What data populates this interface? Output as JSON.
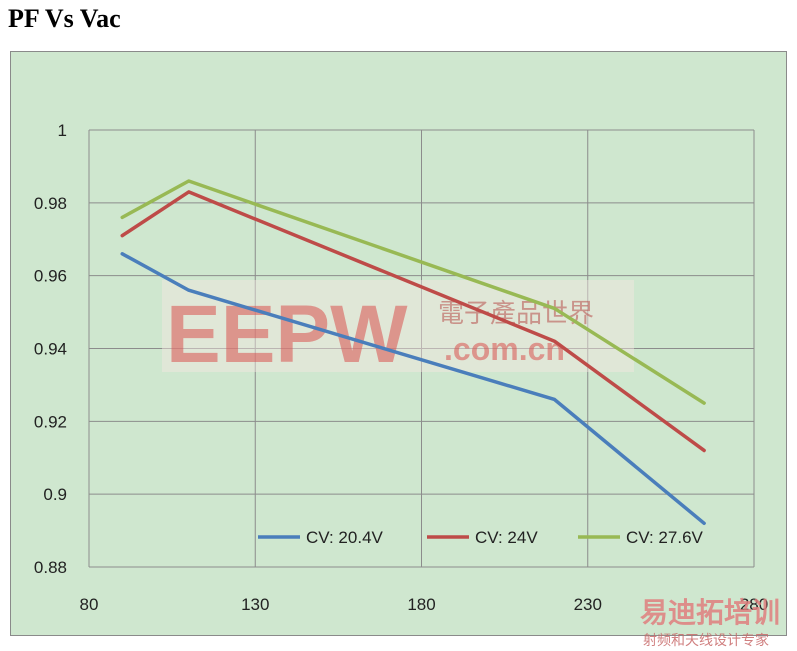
{
  "title": "PF Vs Vac",
  "chart_data": {
    "type": "line",
    "title": "PF Vs Vac",
    "xlabel": "",
    "ylabel": "",
    "xlim": [
      80,
      280
    ],
    "ylim": [
      0.88,
      1.0
    ],
    "x_ticks": [
      80,
      130,
      180,
      230,
      280
    ],
    "y_ticks": [
      0.88,
      0.9,
      0.92,
      0.94,
      0.96,
      0.98,
      1
    ],
    "x_tick_labels": [
      "80",
      "130",
      "180",
      "230",
      "280"
    ],
    "y_tick_labels": [
      "0.88",
      "0.9",
      "0.92",
      "0.94",
      "0.96",
      "0.98",
      "1"
    ],
    "grid": {
      "horizontal": true,
      "vertical": true
    },
    "legend_position": "bottom-right",
    "series": [
      {
        "name": "CV: 20.4V",
        "color": "#4a7ebb",
        "x": [
          90,
          110,
          220,
          265
        ],
        "y": [
          0.966,
          0.956,
          0.926,
          0.892
        ]
      },
      {
        "name": "CV: 24V",
        "color": "#be4b48",
        "x": [
          90,
          110,
          220,
          265
        ],
        "y": [
          0.971,
          0.983,
          0.942,
          0.912
        ]
      },
      {
        "name": "CV: 27.6V",
        "color": "#98b954",
        "x": [
          90,
          110,
          220,
          265
        ],
        "y": [
          0.976,
          0.986,
          0.951,
          0.925
        ]
      }
    ]
  },
  "watermark": {
    "main": "EEPW",
    "main_cn": "電子產品世界",
    "domain": ".com.cn",
    "corner": "易迪拓培训",
    "corner_sub": "射频和天线设计专家"
  }
}
